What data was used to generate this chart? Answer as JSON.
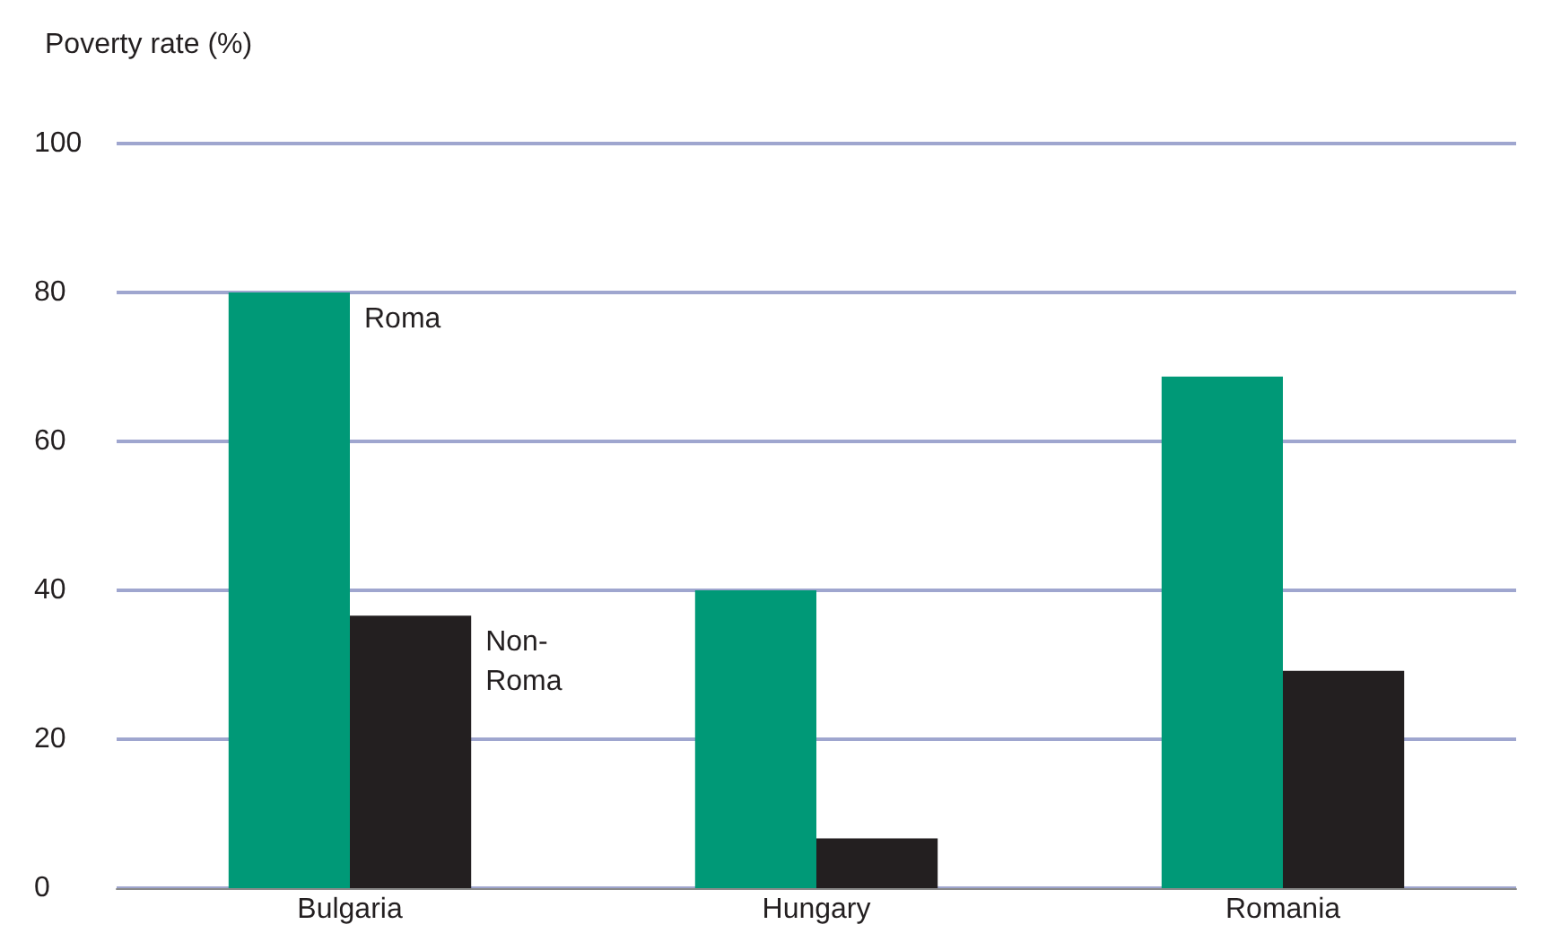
{
  "chart_data": {
    "type": "bar",
    "ylabel": "Poverty rate (%)",
    "categories": [
      "Bulgaria",
      "Hungary",
      "Romania"
    ],
    "series": [
      {
        "name": "Roma",
        "color": "#009977",
        "values": [
          80,
          40,
          68.7
        ]
      },
      {
        "name": "Non-Roma",
        "color": "#231f20",
        "values": [
          36.6,
          6.7,
          29.2
        ]
      }
    ],
    "ylim": [
      0,
      100
    ],
    "yticks": [
      0,
      20,
      40,
      60,
      80,
      100
    ],
    "grid": "y",
    "legend": false
  }
}
